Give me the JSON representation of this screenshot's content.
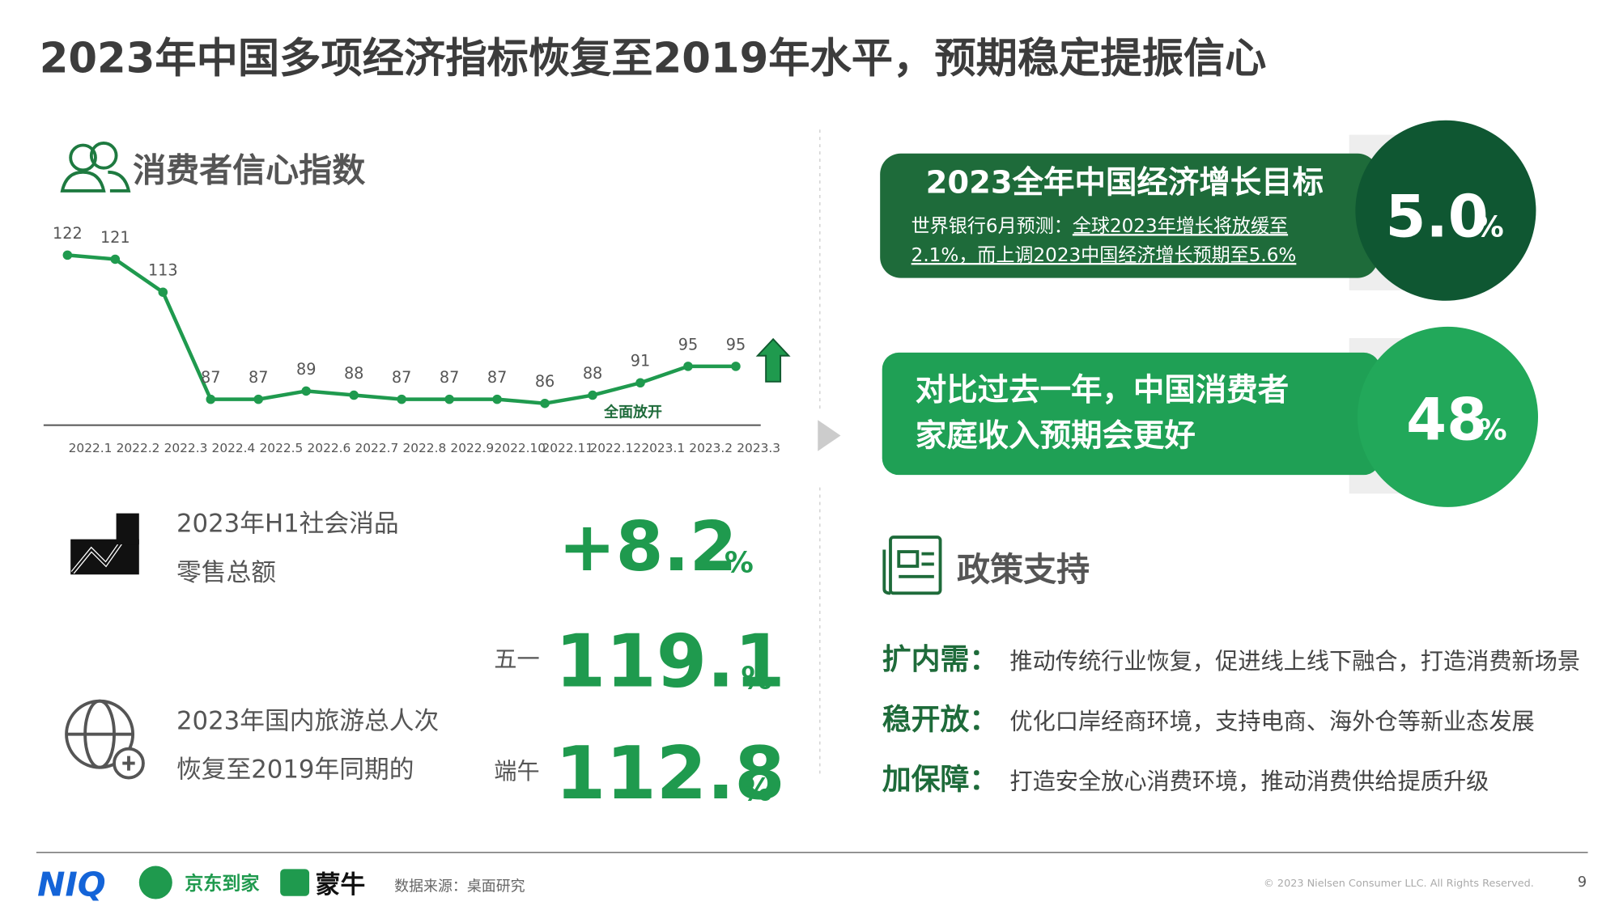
{
  "title": "2023年中国多项经济指标恢复至2019年水平，预期稳定提振信心",
  "chart_data": {
    "type": "line",
    "title": "消费者信心指数",
    "categories": [
      "2022.1",
      "2022.2",
      "2022.3",
      "2022.4",
      "2022.5",
      "2022.6",
      "2022.7",
      "2022.8",
      "2022.9",
      "2022.10",
      "2022.11",
      "2022.12",
      "2023.1",
      "2023.2",
      "2023.3"
    ],
    "values": [
      122,
      121,
      113,
      87,
      87,
      89,
      88,
      87,
      87,
      87,
      86,
      88,
      91,
      95,
      95
    ],
    "color": "#1f9a4e",
    "annotation": "全面放开"
  },
  "retail": {
    "label_lines": [
      "2023年H1社会消品",
      "零售总额"
    ],
    "value": "+8.2",
    "unit": "%"
  },
  "tourism": {
    "label_lines": [
      "2023年国内旅游总人次",
      "恢复至2019年同期的"
    ],
    "items": [
      {
        "holiday": "五一",
        "value": "119.1",
        "unit": "%"
      },
      {
        "holiday": "端午",
        "value": "112.8",
        "unit": "%"
      }
    ]
  },
  "cards": [
    {
      "title": "2023全年中国经济增长目标",
      "source": "世界银行6月预测：",
      "note_lines": [
        "全球2023年增长将放缓至",
        "2.1%，而上调2023中国经济增长预期至5.6%"
      ],
      "value": "5.0",
      "unit": "%"
    },
    {
      "lines": [
        "对比过去一年，中国消费者",
        "家庭收入预期会更好"
      ],
      "value": "48",
      "unit": "%"
    }
  ],
  "policy": {
    "title": "政策支持",
    "items": [
      {
        "label": "扩内需：",
        "text": "推动传统行业恢复，促进线上线下融合，打造消费新场景"
      },
      {
        "label": "稳开放：",
        "text": "优化口岸经商环境，支持电商、海外仓等新业态发展"
      },
      {
        "label": "加保障：",
        "text": "打造安全放心消费环境，推动消费供给提质升级"
      }
    ]
  },
  "footer": {
    "logos": [
      "NIQ",
      "京东到家",
      "蒙牛"
    ],
    "source": "数据来源：桌面研究",
    "copyright": "© 2023 Nielsen Consumer LLC. All Rights Reserved.",
    "page": "9"
  }
}
